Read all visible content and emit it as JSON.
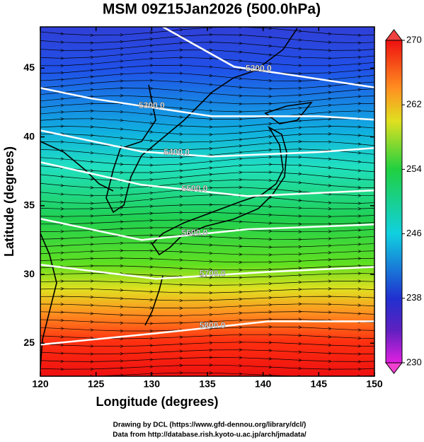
{
  "chart_data": {
    "type": "contour",
    "title": "MSM 09Z15Jan2026 (500.0hPa)",
    "xlabel": "Longitude (degrees)",
    "ylabel": "Latitude  (degrees)",
    "xlim": [
      120,
      150
    ],
    "ylim": [
      22.6,
      48
    ],
    "xticks": [
      120,
      125,
      130,
      135,
      140,
      145,
      150
    ],
    "yticks": [
      25,
      30,
      35,
      40,
      45
    ],
    "colorbar": {
      "lim": [
        230,
        270
      ],
      "ticks": [
        230,
        238,
        246,
        254,
        262,
        270
      ]
    },
    "contours": [
      {
        "value": 5200,
        "label": "5200.0",
        "lon": [
          131.0,
          137.4,
          141.8,
          150
        ],
        "lat": [
          48.0,
          45.1,
          44.59,
          43.6
        ]
      },
      {
        "value": 5300,
        "label": "5300.0",
        "lon": [
          120,
          124.6,
          135.4,
          145.0,
          150
        ],
        "lat": [
          43.56,
          42.79,
          41.5,
          41.5,
          41.25
        ]
      },
      {
        "value": 5400,
        "label": "5400.0",
        "lon": [
          120,
          129.1,
          135.4,
          145.0,
          150
        ],
        "lat": [
          40.48,
          38.93,
          38.57,
          38.9,
          39.19
        ]
      },
      {
        "value": 5500,
        "label": "5500.0",
        "lon": [
          120,
          129.1,
          138.6,
          150
        ],
        "lat": [
          38.16,
          36.52,
          35.69,
          36.11
        ]
      },
      {
        "value": 5600,
        "label": "5600.0",
        "lon": [
          120,
          129.1,
          138.6,
          150
        ],
        "lat": [
          34.05,
          32.51,
          33.28,
          33.64
        ]
      },
      {
        "value": 5700,
        "label": "5700.0",
        "lon": [
          120,
          130.4,
          140.5,
          150
        ],
        "lat": [
          30.71,
          29.68,
          30.19,
          30.55
        ]
      },
      {
        "value": 5800,
        "label": "5800.0",
        "lon": [
          120,
          130.4,
          140.5,
          150
        ],
        "lat": [
          24.9,
          25.72,
          26.59,
          26.59
        ]
      }
    ]
  },
  "footer": [
    "Drawing by DCL (https://www.gfd-dennou.org/library/dcl/)",
    "Data from http://database.rish.kyoto-u.ac.jp/arch/jmadata/"
  ]
}
